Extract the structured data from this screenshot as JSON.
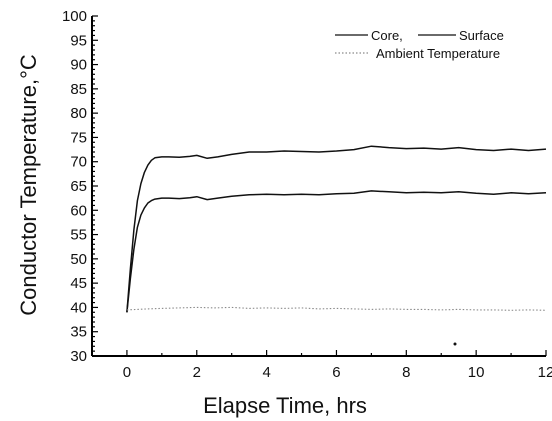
{
  "chart_data": {
    "type": "line",
    "xlabel": "Elapse Time, hrs",
    "ylabel": "Conductor Temperature,°C",
    "xlim": [
      -1,
      12
    ],
    "ylim": [
      30,
      100
    ],
    "xticks": [
      "0",
      "2",
      "4",
      "6",
      "8",
      "10",
      "12"
    ],
    "yticks": [
      "30",
      "35",
      "40",
      "45",
      "50",
      "55",
      "60",
      "65",
      "70",
      "75",
      "80",
      "85",
      "90",
      "95",
      "100"
    ],
    "legend_position": "top-right",
    "grid": false,
    "legend": {
      "entry1": "Core,",
      "entry2": "Surface",
      "entry3": "Ambient Temperature"
    },
    "series": [
      {
        "name": "Core,",
        "color": "#111111",
        "style": "solid",
        "x": [
          0,
          0.1,
          0.2,
          0.3,
          0.4,
          0.5,
          0.6,
          0.7,
          0.8,
          1.0,
          1.2,
          1.5,
          1.8,
          2.0,
          2.3,
          2.6,
          3.0,
          3.5,
          4.0,
          4.5,
          5.0,
          5.5,
          6.0,
          6.5,
          7.0,
          7.5,
          8.0,
          8.5,
          9.0,
          9.5,
          10.0,
          10.5,
          11.0,
          11.5,
          12.0
        ],
        "values": [
          39,
          48,
          56,
          62,
          65.5,
          67.8,
          69.3,
          70.3,
          70.8,
          71.0,
          71.0,
          70.9,
          71.1,
          71.3,
          70.7,
          71.0,
          71.5,
          72.0,
          72.0,
          72.2,
          72.1,
          72.0,
          72.2,
          72.5,
          73.2,
          72.9,
          72.7,
          72.8,
          72.6,
          72.9,
          72.5,
          72.3,
          72.6,
          72.3,
          72.6
        ]
      },
      {
        "name": "Surface",
        "color": "#111111",
        "style": "solid",
        "x": [
          0,
          0.1,
          0.2,
          0.3,
          0.4,
          0.5,
          0.6,
          0.7,
          0.8,
          1.0,
          1.2,
          1.5,
          1.8,
          2.0,
          2.3,
          2.6,
          3.0,
          3.5,
          4.0,
          4.5,
          5.0,
          5.5,
          6.0,
          6.5,
          7.0,
          7.5,
          8.0,
          8.5,
          9.0,
          9.5,
          10.0,
          10.5,
          11.0,
          11.5,
          12.0
        ],
        "values": [
          39,
          46,
          52,
          56.5,
          59,
          60.5,
          61.5,
          62.0,
          62.3,
          62.5,
          62.5,
          62.4,
          62.6,
          62.8,
          62.2,
          62.5,
          62.9,
          63.2,
          63.3,
          63.2,
          63.3,
          63.2,
          63.4,
          63.5,
          64.0,
          63.8,
          63.6,
          63.7,
          63.6,
          63.8,
          63.5,
          63.3,
          63.6,
          63.4,
          63.6
        ]
      },
      {
        "name": "Ambient Temperature",
        "color": "#8a8a8a",
        "style": "dotted",
        "x": [
          0,
          0.3,
          0.6,
          1.0,
          1.5,
          2.0,
          2.5,
          3.0,
          3.5,
          4.0,
          4.5,
          5.0,
          5.5,
          6.0,
          6.5,
          7.0,
          7.5,
          8.0,
          8.5,
          9.0,
          9.5,
          10.0,
          10.5,
          11.0,
          11.5,
          12.0
        ],
        "values": [
          39.5,
          39.6,
          39.7,
          39.8,
          39.9,
          40.0,
          39.9,
          40.0,
          39.8,
          39.9,
          39.8,
          39.9,
          39.7,
          39.8,
          39.7,
          39.6,
          39.7,
          39.6,
          39.6,
          39.5,
          39.6,
          39.5,
          39.5,
          39.4,
          39.5,
          39.4
        ]
      }
    ]
  }
}
